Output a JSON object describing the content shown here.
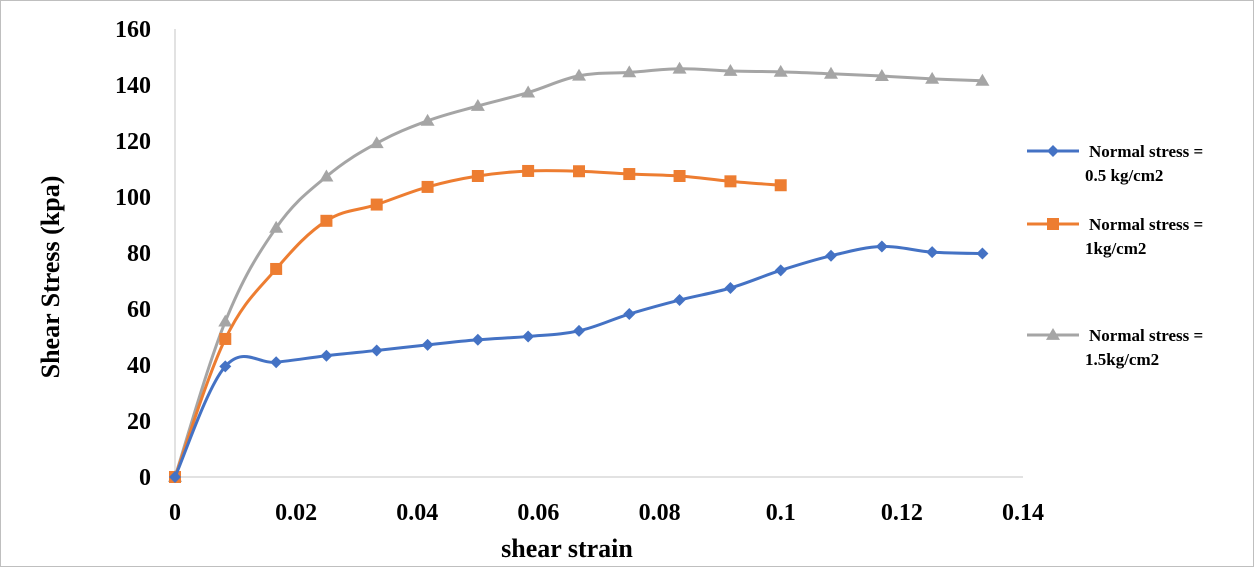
{
  "chart_data": {
    "type": "line",
    "title": "",
    "xlabel": "shear strain",
    "ylabel": "Shear Stress (kpa)",
    "xlim": [
      0,
      0.14
    ],
    "ylim": [
      0,
      160
    ],
    "x_ticks": [
      "0",
      "0.02",
      "0.04",
      "0.06",
      "0.08",
      "0.1",
      "0.12",
      "0.14"
    ],
    "y_ticks": [
      "0",
      "20",
      "40",
      "60",
      "80",
      "100",
      "120",
      "140",
      "160"
    ],
    "grid": false,
    "legend_position": "right",
    "series": [
      {
        "name_lines": [
          "Normal stress =",
          "0.5 kg/cm2"
        ],
        "color": "#4472C4",
        "marker": "diamond",
        "x": [
          0,
          0.0083,
          0.0167,
          0.025,
          0.0333,
          0.0417,
          0.05,
          0.0583,
          0.0667,
          0.075,
          0.0833,
          0.0917,
          0.1,
          0.1083,
          0.1167,
          0.125,
          0.1333
        ],
        "y": [
          0,
          39.5,
          41,
          43.3,
          45.2,
          47.2,
          49,
          50.2,
          52.2,
          58.2,
          63.2,
          67.5,
          73.8,
          79,
          82.3,
          80.3,
          79.8
        ]
      },
      {
        "name_lines": [
          "Normal stress =",
          "1kg/cm2"
        ],
        "color": "#ED7D31",
        "marker": "square",
        "x": [
          0,
          0.0083,
          0.0167,
          0.025,
          0.0333,
          0.0417,
          0.05,
          0.0583,
          0.0667,
          0.075,
          0.0833,
          0.0917,
          0.1
        ],
        "y": [
          0,
          49.3,
          74.3,
          91.5,
          97.3,
          103.6,
          107.5,
          109.3,
          109.2,
          108.2,
          107.5,
          105.6,
          104.2
        ]
      },
      {
        "name_lines": [
          "Normal stress =",
          "1.5kg/cm2"
        ],
        "color": "#A5A5A5",
        "marker": "triangle",
        "x": [
          0,
          0.0083,
          0.0167,
          0.025,
          0.0333,
          0.0417,
          0.05,
          0.0583,
          0.0667,
          0.075,
          0.0833,
          0.0917,
          0.1,
          0.1083,
          0.1167,
          0.125,
          0.1333
        ],
        "y": [
          0,
          55.5,
          89,
          107.3,
          119.2,
          127.2,
          132.5,
          137.3,
          143.3,
          144.5,
          145.8,
          145,
          144.7,
          144,
          143.2,
          142.2,
          141.5
        ]
      }
    ]
  }
}
